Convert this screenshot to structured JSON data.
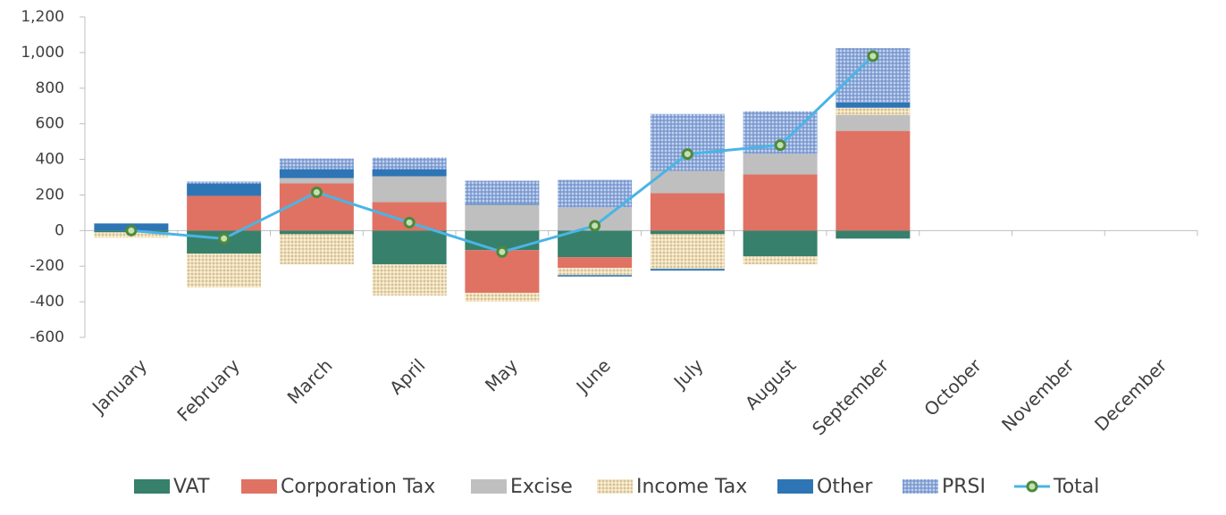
{
  "chart_data": {
    "type": "bar+line",
    "categories": [
      "January",
      "February",
      "March",
      "April",
      "May",
      "June",
      "July",
      "August",
      "September",
      "October",
      "November",
      "December"
    ],
    "series": [
      {
        "name": "VAT",
        "type": "bar",
        "color": "#37806b",
        "values": [
          -10,
          -130,
          -20,
          -190,
          -110,
          -150,
          -20,
          -145,
          -45,
          null,
          null,
          null
        ]
      },
      {
        "name": "Corporation Tax",
        "type": "bar",
        "color": "#e07264",
        "values": [
          0,
          195,
          265,
          160,
          -240,
          -60,
          210,
          315,
          560,
          null,
          null,
          null
        ]
      },
      {
        "name": "Excise",
        "type": "bar",
        "color": "#bfbfbf",
        "values": [
          0,
          0,
          30,
          145,
          145,
          130,
          125,
          115,
          90,
          null,
          null,
          null
        ]
      },
      {
        "name": "Income Tax",
        "type": "bar",
        "color": "#f2ddb0",
        "pattern": "dots",
        "values": [
          -30,
          -190,
          -170,
          -175,
          -50,
          -40,
          -195,
          -45,
          40,
          null,
          null,
          null
        ]
      },
      {
        "name": "Other",
        "type": "bar",
        "color": "#2e75b6",
        "values": [
          40,
          70,
          50,
          40,
          5,
          -8,
          -10,
          0,
          30,
          null,
          null,
          null
        ]
      },
      {
        "name": "PRSI",
        "type": "bar",
        "color": "#8eaadc",
        "pattern": "dots",
        "values": [
          0,
          10,
          60,
          65,
          130,
          155,
          320,
          240,
          305,
          null,
          null,
          null
        ]
      },
      {
        "name": "Total",
        "type": "line",
        "color": "#4ab4e6",
        "marker_color": "#4e8a3a",
        "values": [
          0,
          -45,
          215,
          45,
          -120,
          27,
          430,
          480,
          980,
          null,
          null,
          null
        ]
      }
    ],
    "ylim": [
      -600,
      1200
    ],
    "yticks": [
      -600,
      -400,
      -200,
      0,
      200,
      400,
      600,
      800,
      {
        "value": 1000,
        "label": "1,000"
      },
      {
        "value": 1200,
        "label": "1,200"
      }
    ],
    "legend": "bottom"
  }
}
